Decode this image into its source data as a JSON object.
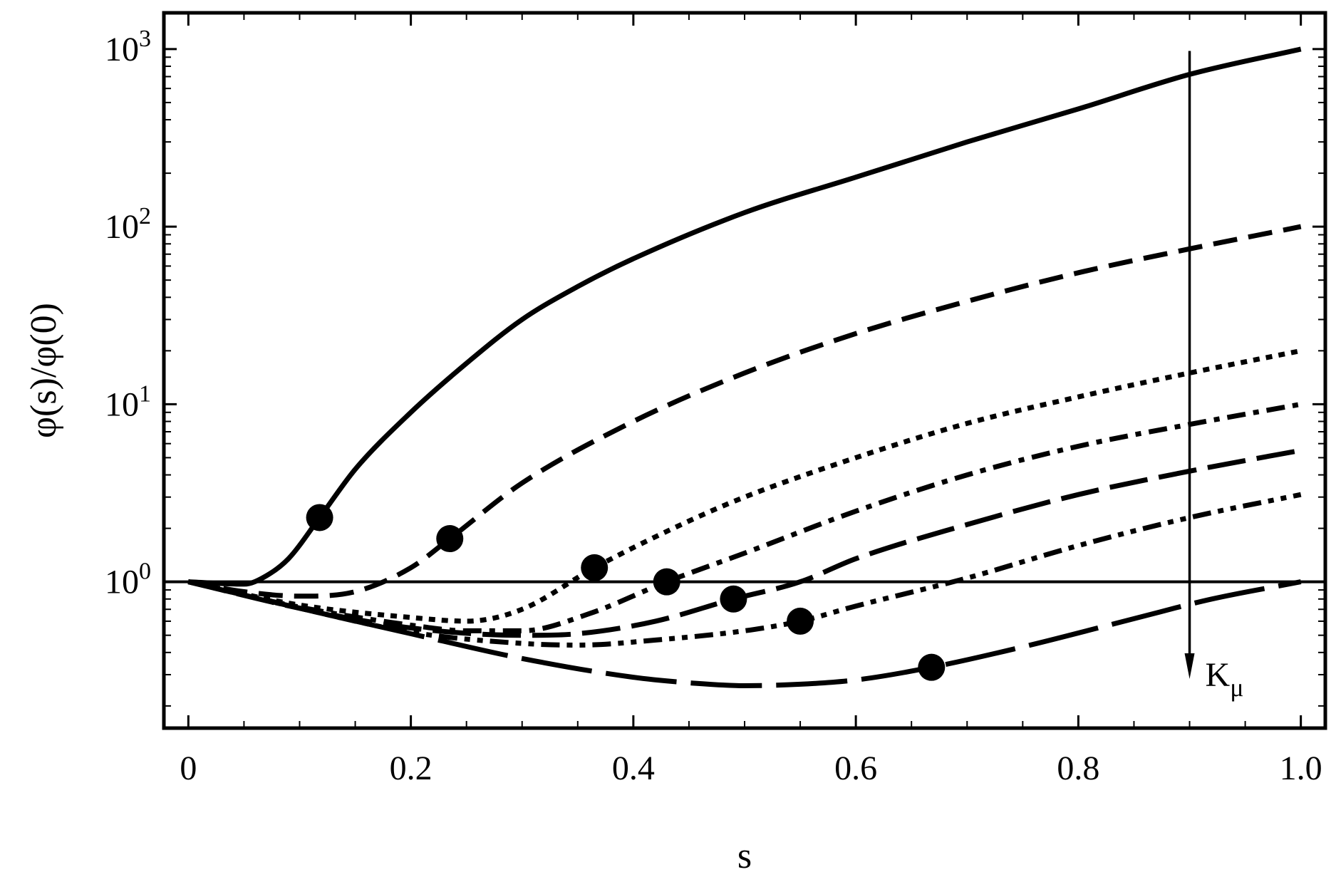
{
  "chart_data": {
    "type": "line",
    "xlabel": "s",
    "ylabel": "φ(s)/φ(0)",
    "xlim": [
      -0.022,
      1.022
    ],
    "ylim": [
      0.15,
      1600
    ],
    "yscale": "log",
    "x_ticks": [
      0,
      0.2,
      0.4,
      0.6,
      0.8,
      1.0
    ],
    "x_tick_labels": [
      "0",
      "0.2",
      "0.4",
      "0.6",
      "0.8",
      "1.0"
    ],
    "y_ticks": [
      1,
      10,
      100,
      1000
    ],
    "y_tick_labels": [
      {
        "base": "10",
        "exp": "0"
      },
      {
        "base": "10",
        "exp": "1"
      },
      {
        "base": "10",
        "exp": "2"
      },
      {
        "base": "10",
        "exp": "3"
      }
    ],
    "grid": false,
    "legend": "none",
    "reference_line": {
      "y": 1
    },
    "annotation": {
      "label": "K",
      "subscript": "μ",
      "x": 0.9,
      "y_from": 740,
      "y_to": 0.3
    },
    "series": [
      {
        "style": "solid",
        "end_value": 1000,
        "marker": {
          "x": 0.118,
          "y": 2.3
        },
        "points": [
          [
            0,
            1
          ],
          [
            0.05,
            0.97
          ],
          [
            0.07,
            1.08
          ],
          [
            0.09,
            1.35
          ],
          [
            0.118,
            2.3
          ],
          [
            0.15,
            4.3
          ],
          [
            0.2,
            9
          ],
          [
            0.25,
            17
          ],
          [
            0.3,
            30
          ],
          [
            0.35,
            46
          ],
          [
            0.4,
            66
          ],
          [
            0.5,
            120
          ],
          [
            0.6,
            190
          ],
          [
            0.7,
            300
          ],
          [
            0.8,
            460
          ],
          [
            0.9,
            720
          ],
          [
            1.0,
            1000
          ]
        ]
      },
      {
        "style": "dashed",
        "end_value": 100,
        "marker": {
          "x": 0.235,
          "y": 1.75
        },
        "points": [
          [
            0,
            1
          ],
          [
            0.05,
            0.88
          ],
          [
            0.1,
            0.83
          ],
          [
            0.15,
            0.88
          ],
          [
            0.2,
            1.2
          ],
          [
            0.235,
            1.75
          ],
          [
            0.3,
            3.6
          ],
          [
            0.4,
            8
          ],
          [
            0.5,
            15
          ],
          [
            0.6,
            25
          ],
          [
            0.7,
            38
          ],
          [
            0.8,
            55
          ],
          [
            0.9,
            75
          ],
          [
            1.0,
            100
          ]
        ]
      },
      {
        "style": "dotted",
        "end_value": 20,
        "marker": {
          "x": 0.365,
          "y": 1.2
        },
        "points": [
          [
            0,
            1
          ],
          [
            0.1,
            0.74
          ],
          [
            0.2,
            0.63
          ],
          [
            0.25,
            0.6
          ],
          [
            0.3,
            0.7
          ],
          [
            0.365,
            1.2
          ],
          [
            0.45,
            2.2
          ],
          [
            0.5,
            3
          ],
          [
            0.6,
            5
          ],
          [
            0.7,
            7.8
          ],
          [
            0.8,
            11
          ],
          [
            0.9,
            15
          ],
          [
            1.0,
            20
          ]
        ]
      },
      {
        "style": "dash-dot",
        "end_value": 10,
        "marker": {
          "x": 0.43,
          "y": 1.0
        },
        "points": [
          [
            0,
            1
          ],
          [
            0.1,
            0.72
          ],
          [
            0.2,
            0.57
          ],
          [
            0.25,
            0.53
          ],
          [
            0.3,
            0.53
          ],
          [
            0.36,
            0.66
          ],
          [
            0.43,
            1.0
          ],
          [
            0.5,
            1.45
          ],
          [
            0.6,
            2.5
          ],
          [
            0.7,
            4
          ],
          [
            0.8,
            5.8
          ],
          [
            0.9,
            7.7
          ],
          [
            1.0,
            10
          ]
        ]
      },
      {
        "style": "long-dash",
        "end_value": 5.5,
        "marker": {
          "x": 0.49,
          "y": 0.8
        },
        "points": [
          [
            0,
            1
          ],
          [
            0.1,
            0.71
          ],
          [
            0.2,
            0.55
          ],
          [
            0.3,
            0.5
          ],
          [
            0.35,
            0.51
          ],
          [
            0.42,
            0.6
          ],
          [
            0.49,
            0.8
          ],
          [
            0.55,
            1.0
          ],
          [
            0.6,
            1.35
          ],
          [
            0.7,
            2.1
          ],
          [
            0.8,
            3.1
          ],
          [
            0.9,
            4.2
          ],
          [
            1.0,
            5.5
          ]
        ]
      },
      {
        "style": "dash-dot-dot",
        "end_value": 3.1,
        "marker": {
          "x": 0.55,
          "y": 0.6
        },
        "points": [
          [
            0,
            1
          ],
          [
            0.1,
            0.71
          ],
          [
            0.2,
            0.52
          ],
          [
            0.3,
            0.45
          ],
          [
            0.35,
            0.44
          ],
          [
            0.42,
            0.47
          ],
          [
            0.5,
            0.53
          ],
          [
            0.55,
            0.6
          ],
          [
            0.6,
            0.73
          ],
          [
            0.7,
            1.05
          ],
          [
            0.8,
            1.6
          ],
          [
            0.9,
            2.3
          ],
          [
            1.0,
            3.1
          ]
        ]
      },
      {
        "style": "very-long-dash",
        "end_value": 1.0,
        "marker": {
          "x": 0.668,
          "y": 0.33
        },
        "points": [
          [
            0,
            1
          ],
          [
            0.1,
            0.71
          ],
          [
            0.2,
            0.51
          ],
          [
            0.3,
            0.37
          ],
          [
            0.4,
            0.29
          ],
          [
            0.45,
            0.27
          ],
          [
            0.5,
            0.26
          ],
          [
            0.55,
            0.265
          ],
          [
            0.6,
            0.28
          ],
          [
            0.668,
            0.33
          ],
          [
            0.75,
            0.43
          ],
          [
            0.85,
            0.62
          ],
          [
            0.92,
            0.8
          ],
          [
            1.0,
            1.0
          ]
        ]
      }
    ]
  }
}
